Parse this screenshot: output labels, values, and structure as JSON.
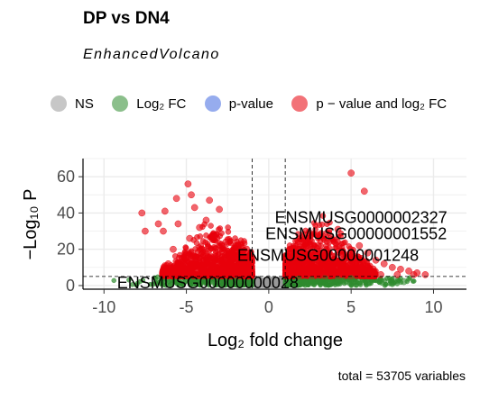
{
  "title": "DP vs DN4",
  "subtitle": "EnhancedVolcano",
  "caption": "total = 53705 variables",
  "legend": [
    {
      "label": "NS",
      "color": "#9a9a9a"
    },
    {
      "label": "Log₂ FC",
      "color": "#2e8b2e"
    },
    {
      "label": "p-value",
      "color": "#4169e1"
    },
    {
      "label": "p − value and log₂ FC",
      "color": "#e8000b"
    }
  ],
  "chart_data": {
    "type": "scatter",
    "xlabel": "Log₂ fold change",
    "ylabel": "−Log₁₀ P",
    "xlim": [
      -11,
      12
    ],
    "ylim": [
      -2,
      70
    ],
    "xticks": [
      "-10",
      "-5",
      "0",
      "5",
      "10"
    ],
    "yticks": [
      "0",
      "20",
      "40",
      "60"
    ],
    "grid": true,
    "cutoffs": {
      "log2fc": [
        -1,
        1
      ],
      "neg_log10_p": 5
    },
    "colors": {
      "ns": "#9a9a9a",
      "fc": "#2e8b2e",
      "p": "#4169e1",
      "both": "#e8000b"
    },
    "labeled_points": [
      {
        "label": "ENSMUSG0000002327",
        "x": 5.6,
        "y": 38
      },
      {
        "label": "ENSMUSG00000001552",
        "x": 5.3,
        "y": 29
      },
      {
        "label": "ENSMUSG00000001248",
        "x": 3.6,
        "y": 17
      },
      {
        "label": "ENSMUSG00000000028",
        "x": -3.7,
        "y": 2
      }
    ],
    "series": [
      {
        "name": "NS",
        "x": [
          0.2,
          -0.4,
          0.6,
          -0.7,
          0.1,
          0.5,
          -0.2
        ],
        "y": [
          0.4,
          1.1,
          2.0,
          0.8,
          3.2,
          1.6,
          2.6
        ]
      },
      {
        "name": "Log₂ FC",
        "x": [
          1.5,
          2.2,
          3.0,
          3.8,
          4.5,
          5.2,
          6.0,
          6.8,
          7.5,
          8.2,
          1.8,
          2.6,
          3.4,
          4.2,
          5.0,
          -1.4,
          -2.0,
          -2.8,
          -3.6,
          -4.4
        ],
        "y": [
          1.2,
          1.8,
          2.3,
          1.5,
          2.6,
          2.0,
          1.4,
          2.8,
          1.1,
          2.2,
          3.6,
          3.2,
          4.0,
          3.4,
          3.8,
          1.6,
          2.4,
          1.3,
          2.0,
          1.7
        ]
      },
      {
        "name": "p-value",
        "x": [],
        "y": []
      },
      {
        "name": "p − value and log₂ FC",
        "x": [
          5.0,
          5.8,
          -4.9,
          -4.7,
          -4.5,
          -5.6,
          -3.6,
          -3.0,
          -6.3,
          -7.7,
          -6.7,
          -5.5,
          -6.4,
          -7.5,
          -3.8,
          -4.2,
          -3.2,
          -2.6,
          -2.0,
          -1.6,
          -2.3,
          -5.8,
          -6.1,
          -4.8,
          2.5,
          3.0,
          3.5,
          4.0,
          4.5,
          2.0,
          5.5,
          6.0,
          6.5,
          7.0,
          7.5,
          8.0,
          8.5,
          9.0,
          9.5,
          1.5,
          2.8,
          3.6,
          4.8,
          5.6,
          6.2,
          1.2,
          -1.2,
          3.1,
          4.2,
          6.8,
          7.8,
          8.8,
          2.2,
          3.9,
          5.2,
          -3.4,
          -2.8,
          -4.0,
          3.3,
          4.4
        ],
        "y": [
          62,
          52,
          56,
          50,
          43,
          48,
          47,
          42,
          41,
          40,
          34,
          34,
          30,
          30,
          36,
          32,
          28,
          24,
          22,
          18,
          15,
          20,
          12,
          26,
          25,
          22,
          20,
          24,
          19,
          14,
          22,
          18,
          14,
          12,
          10,
          9,
          8,
          7,
          6,
          10,
          17,
          15,
          12,
          10,
          8,
          8,
          9,
          28,
          31,
          6,
          6,
          6,
          12,
          10,
          16,
          12,
          9,
          8,
          6,
          7
        ]
      }
    ]
  }
}
